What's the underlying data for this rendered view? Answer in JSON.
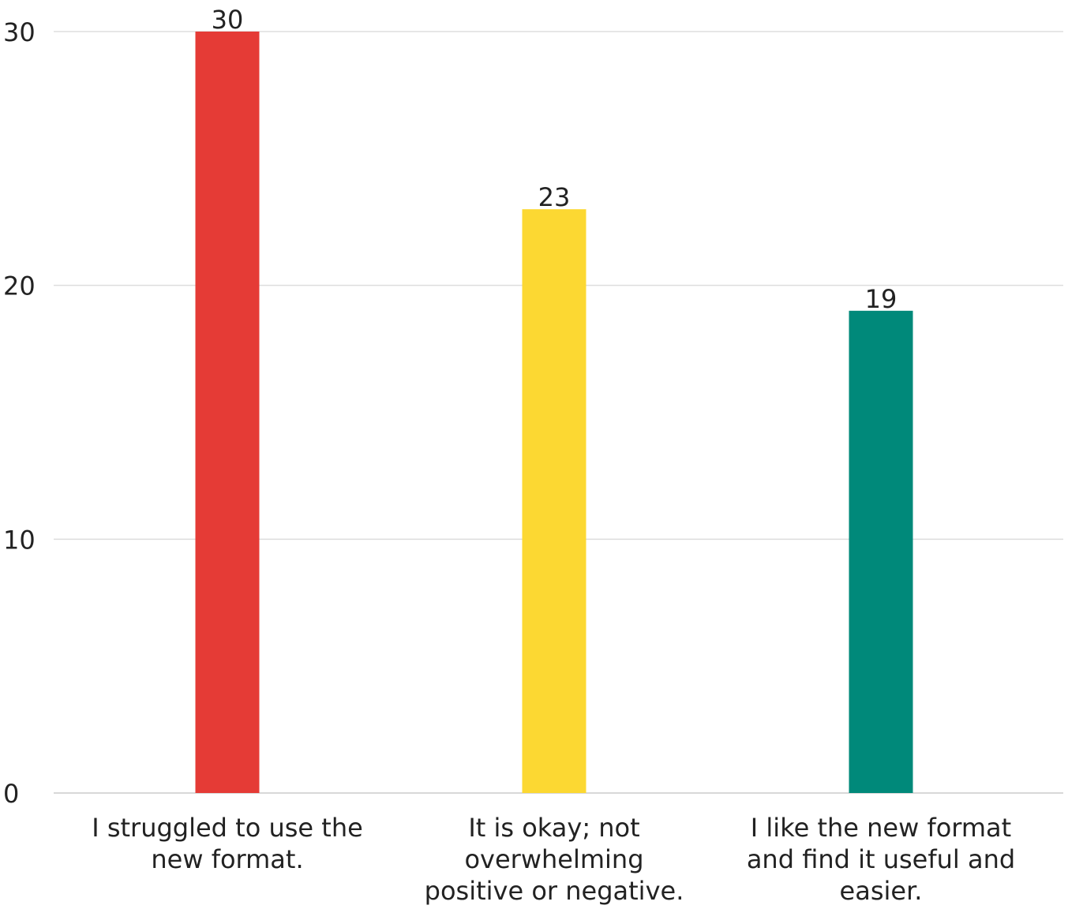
{
  "chart_data": {
    "type": "bar",
    "categories": [
      [
        "I struggled to use the",
        "new format."
      ],
      [
        "It is okay; not",
        "overwhelming",
        "positive or negative."
      ],
      [
        "I like the new format",
        "and find it useful and",
        "easier."
      ]
    ],
    "values": [
      30,
      23,
      19
    ],
    "colors": [
      "#e53b36",
      "#fcd832",
      "#00897a"
    ],
    "ylim": [
      0,
      30
    ],
    "yticks": [
      0,
      10,
      20,
      30
    ],
    "title": "",
    "xlabel": "",
    "ylabel": "",
    "grid": true,
    "legend": "none"
  }
}
